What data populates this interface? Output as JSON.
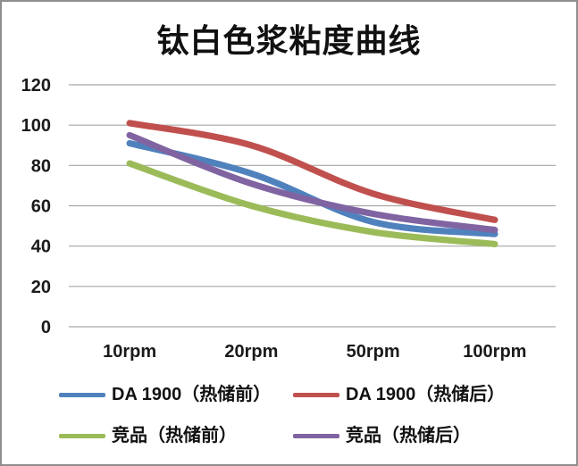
{
  "title": "钛白色浆粘度曲线",
  "chart_data": {
    "type": "line",
    "title": "钛白色浆粘度曲线",
    "categories": [
      "10rpm",
      "20rpm",
      "50rpm",
      "100rpm"
    ],
    "series": [
      {
        "name": "DA 1900（热储前）",
        "color": "#4F81BD",
        "values": [
          91,
          76,
          52,
          46
        ]
      },
      {
        "name": "DA 1900（热储后）",
        "color": "#C0504D",
        "values": [
          101,
          90,
          66,
          53
        ]
      },
      {
        "name": "竞品（热储前）",
        "color": "#9BBB59",
        "values": [
          81,
          60,
          47,
          41
        ]
      },
      {
        "name": "竞品（热储后）",
        "color": "#8064A2",
        "values": [
          95,
          71,
          56,
          48
        ]
      }
    ],
    "xlabel": "",
    "ylabel": "",
    "ylim": [
      0,
      120
    ],
    "yticks": [
      0,
      20,
      40,
      60,
      80,
      100,
      120
    ],
    "grid": true,
    "smooth": true,
    "legend_position": "bottom",
    "legend_columns": 2
  },
  "styles": {
    "grid_color": "#A6A6A6",
    "text_color": "#1A1A1A",
    "frame_border_color": "#8E8E8E",
    "background_color": "#FFFFFF"
  }
}
